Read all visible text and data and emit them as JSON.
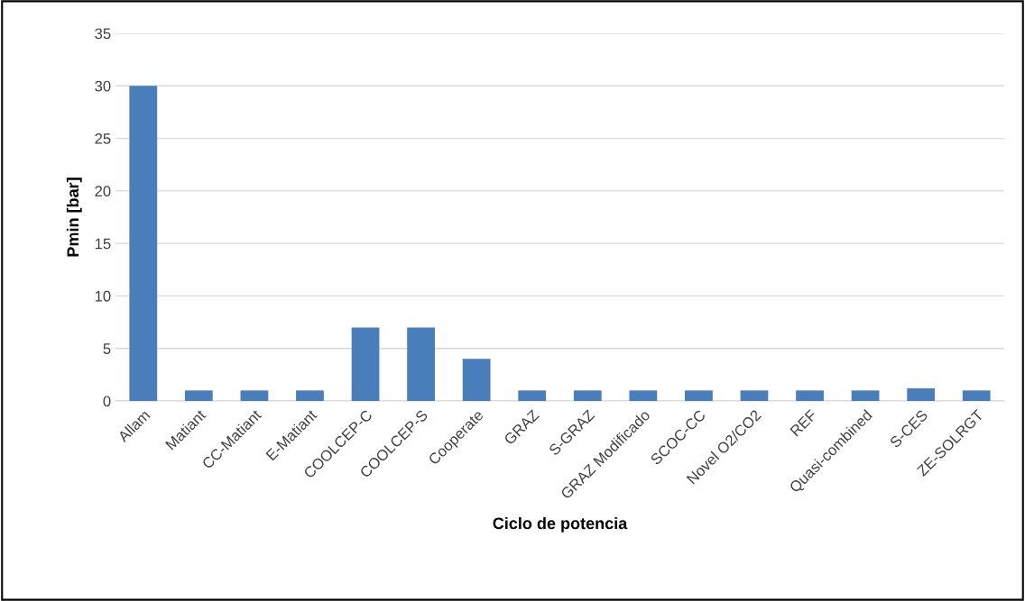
{
  "chart_data": {
    "type": "bar",
    "xlabel": "Ciclo de potencia",
    "ylabel": "Pmin [bar]",
    "categories": [
      "Allam",
      "Matiant",
      "CC-Matiant",
      "E-Matiant",
      "COOLCEP-C",
      "COOLCEP-S",
      "Cooperate",
      "GRAZ",
      "S-GRAZ",
      "GRAZ Modificado",
      "SCOC-CC",
      "Novel O2/CO2",
      "REF",
      "Quasi-combined",
      "S-CES",
      "ZE-SOLRGT"
    ],
    "values": [
      30,
      1,
      1,
      1,
      7,
      7,
      4,
      1,
      1,
      1,
      1,
      1,
      1,
      1,
      1.2,
      1
    ],
    "color": "#4a7ebb",
    "ylim": [
      0,
      35
    ],
    "yticks": [
      0,
      5,
      10,
      15,
      20,
      25,
      30,
      35
    ],
    "grid": "y",
    "legend": false
  }
}
